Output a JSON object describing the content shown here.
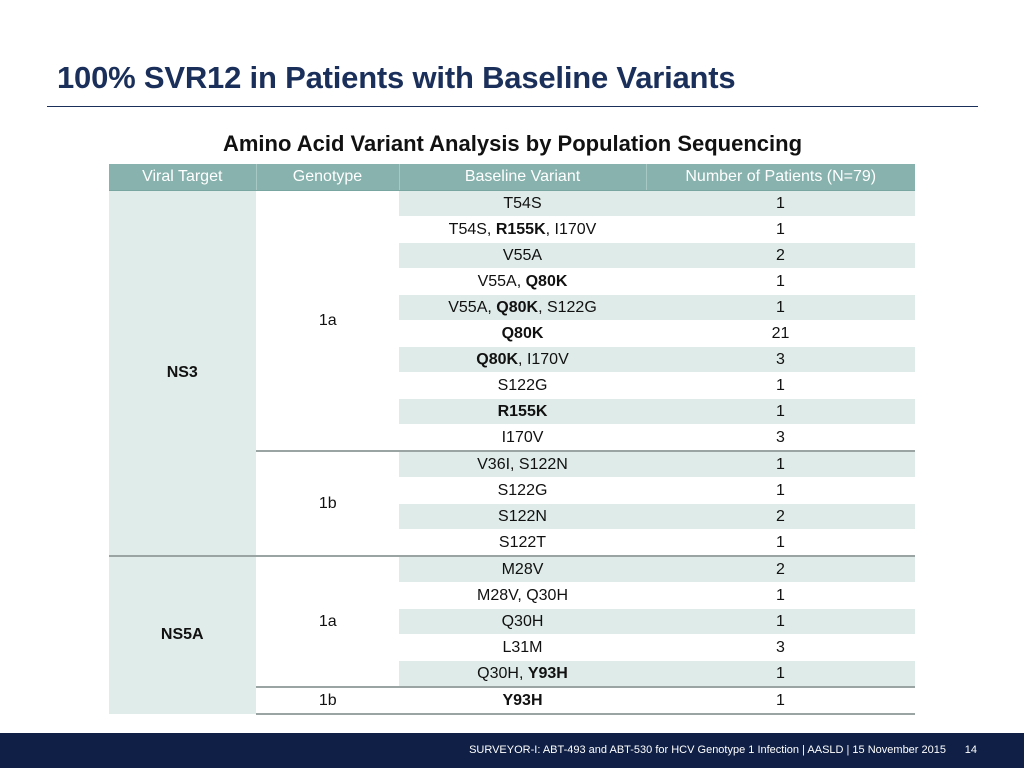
{
  "title": "100% SVR12 in Patients with Baseline Variants",
  "table_heading": "Amino Acid Variant Analysis by Population Sequencing",
  "columns": [
    "Viral Target",
    "Genotype",
    "Baseline Variant",
    "Number of Patients (N=79)"
  ],
  "groups": [
    {
      "target": "NS3",
      "genotypes": [
        {
          "genotype": "1a",
          "rows": [
            {
              "variant": [
                {
                  "t": "T54S"
                }
              ],
              "n": "1"
            },
            {
              "variant": [
                {
                  "t": "T54S, "
                },
                {
                  "t": "R155K",
                  "b": true
                },
                {
                  "t": ", I170V"
                }
              ],
              "n": "1"
            },
            {
              "variant": [
                {
                  "t": "V55A"
                }
              ],
              "n": "2"
            },
            {
              "variant": [
                {
                  "t": "V55A, "
                },
                {
                  "t": "Q80K",
                  "b": true
                }
              ],
              "n": "1"
            },
            {
              "variant": [
                {
                  "t": "V55A, "
                },
                {
                  "t": "Q80K",
                  "b": true
                },
                {
                  "t": ", S122G"
                }
              ],
              "n": "1"
            },
            {
              "variant": [
                {
                  "t": "Q80K",
                  "b": true
                }
              ],
              "n": "21"
            },
            {
              "variant": [
                {
                  "t": "Q80K",
                  "b": true
                },
                {
                  "t": ", I170V"
                }
              ],
              "n": "3"
            },
            {
              "variant": [
                {
                  "t": "S122G"
                }
              ],
              "n": "1"
            },
            {
              "variant": [
                {
                  "t": "R155K",
                  "b": true
                }
              ],
              "n": "1"
            },
            {
              "variant": [
                {
                  "t": "I170V"
                }
              ],
              "n": "3"
            }
          ]
        },
        {
          "genotype": "1b",
          "rows": [
            {
              "variant": [
                {
                  "t": "V36I, S122N"
                }
              ],
              "n": "1"
            },
            {
              "variant": [
                {
                  "t": "S122G"
                }
              ],
              "n": "1"
            },
            {
              "variant": [
                {
                  "t": "S122N"
                }
              ],
              "n": "2"
            },
            {
              "variant": [
                {
                  "t": "S122T"
                }
              ],
              "n": "1"
            }
          ]
        }
      ]
    },
    {
      "target": "NS5A",
      "genotypes": [
        {
          "genotype": "1a",
          "rows": [
            {
              "variant": [
                {
                  "t": "M28V"
                }
              ],
              "n": "2"
            },
            {
              "variant": [
                {
                  "t": "M28V, Q30H"
                }
              ],
              "n": "1"
            },
            {
              "variant": [
                {
                  "t": "Q30H"
                }
              ],
              "n": "1"
            },
            {
              "variant": [
                {
                  "t": "L31M"
                }
              ],
              "n": "3"
            },
            {
              "variant": [
                {
                  "t": "Q30H, "
                },
                {
                  "t": "Y93H",
                  "b": true
                }
              ],
              "n": "1"
            }
          ]
        },
        {
          "genotype": "1b",
          "rows": [
            {
              "variant": [
                {
                  "t": "Y93H",
                  "b": true
                }
              ],
              "n": "1"
            }
          ]
        }
      ]
    }
  ],
  "footer": "SURVEYOR-I: ABT-493 and ABT-530 for HCV Genotype 1 Infection   | AASLD | 15 November 2015",
  "page_number": "14",
  "colors": {
    "title": "#1a2f5a",
    "header_fill": "#87b2ad",
    "row_shade": "#deebe8",
    "footer_bar": "#0f1f45"
  }
}
